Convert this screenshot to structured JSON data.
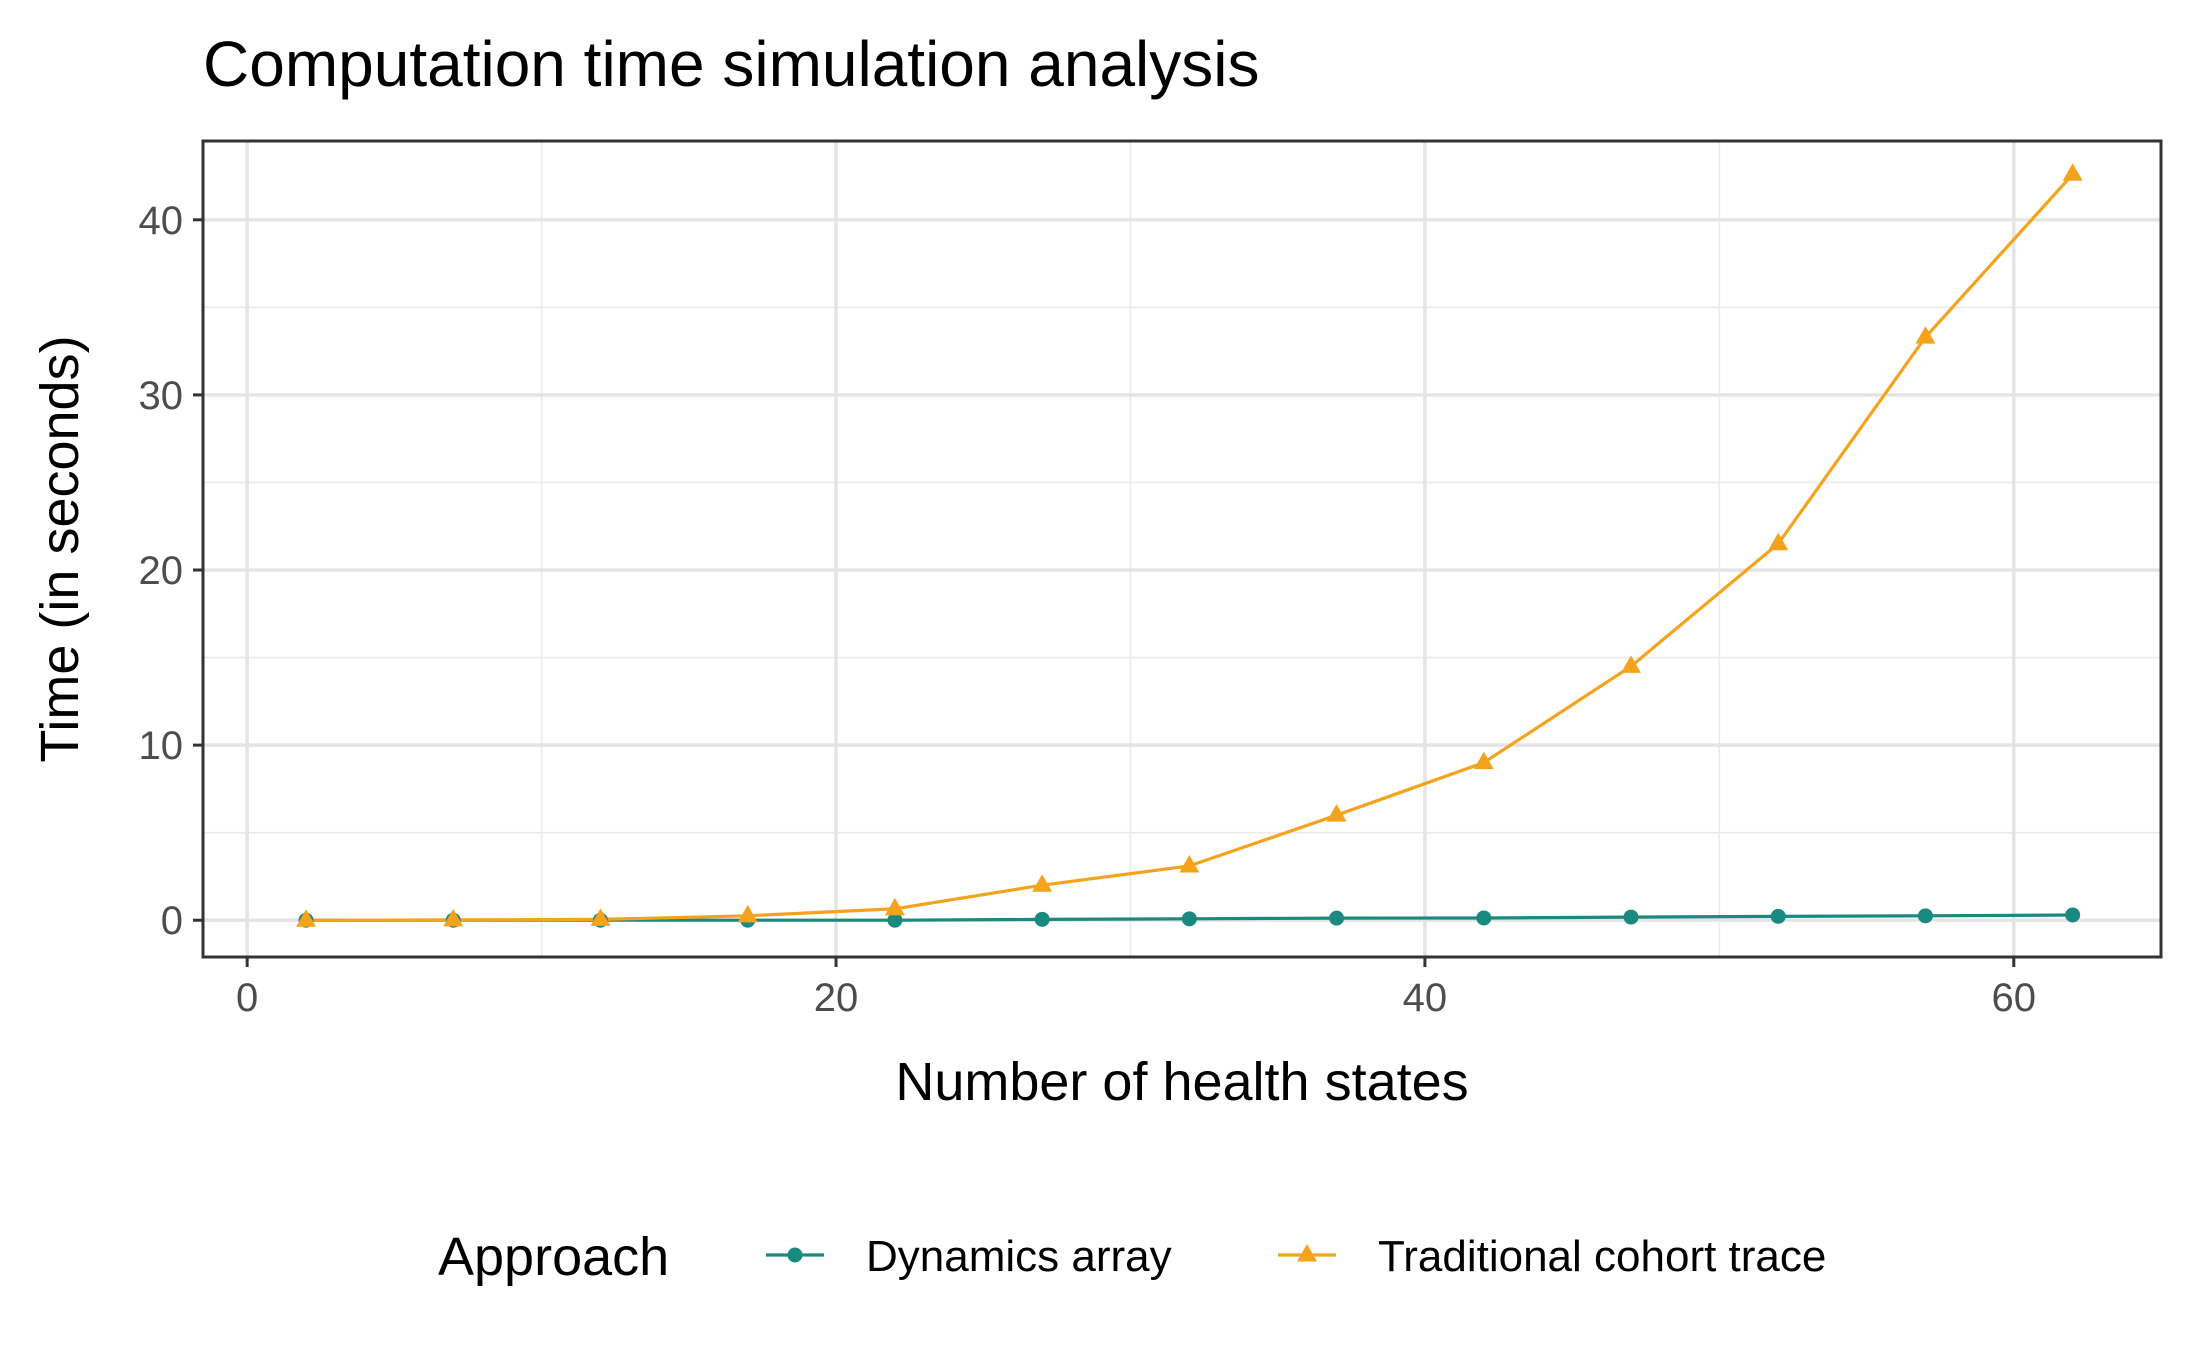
{
  "chart_data": {
    "type": "line",
    "title": "Computation time simulation analysis",
    "xlabel": "Number of health states",
    "ylabel": "Time (in seconds)",
    "xlim": [
      -1.5,
      65
    ],
    "ylim": [
      -2.1,
      44.5
    ],
    "x_ticks": [
      0,
      20,
      40,
      60
    ],
    "y_ticks": [
      0,
      10,
      20,
      30,
      40
    ],
    "x_tick_labels": [
      "0",
      "20",
      "40",
      "60"
    ],
    "y_tick_labels": [
      "0",
      "10",
      "20",
      "30",
      "40"
    ],
    "grid": true,
    "legend": {
      "title": "Approach",
      "position": "bottom"
    },
    "series": [
      {
        "name": "Dynamics array",
        "color": "#1a8a80",
        "marker": "circle",
        "x": [
          2,
          7,
          12,
          17,
          22,
          27,
          32,
          37,
          42,
          47,
          52,
          57,
          62
        ],
        "y": [
          0.0,
          0.0,
          0.0,
          0.0,
          0.0,
          0.05,
          0.08,
          0.12,
          0.13,
          0.18,
          0.22,
          0.25,
          0.3
        ]
      },
      {
        "name": "Traditional cohort trace",
        "color": "#f5a31c",
        "marker": "triangle",
        "x": [
          2,
          7,
          12,
          17,
          22,
          27,
          32,
          37,
          42,
          47,
          52,
          57,
          62
        ],
        "y": [
          0.0,
          0.02,
          0.05,
          0.25,
          0.65,
          2.0,
          3.1,
          6.0,
          9.0,
          14.5,
          21.5,
          33.3,
          42.6
        ]
      }
    ]
  }
}
